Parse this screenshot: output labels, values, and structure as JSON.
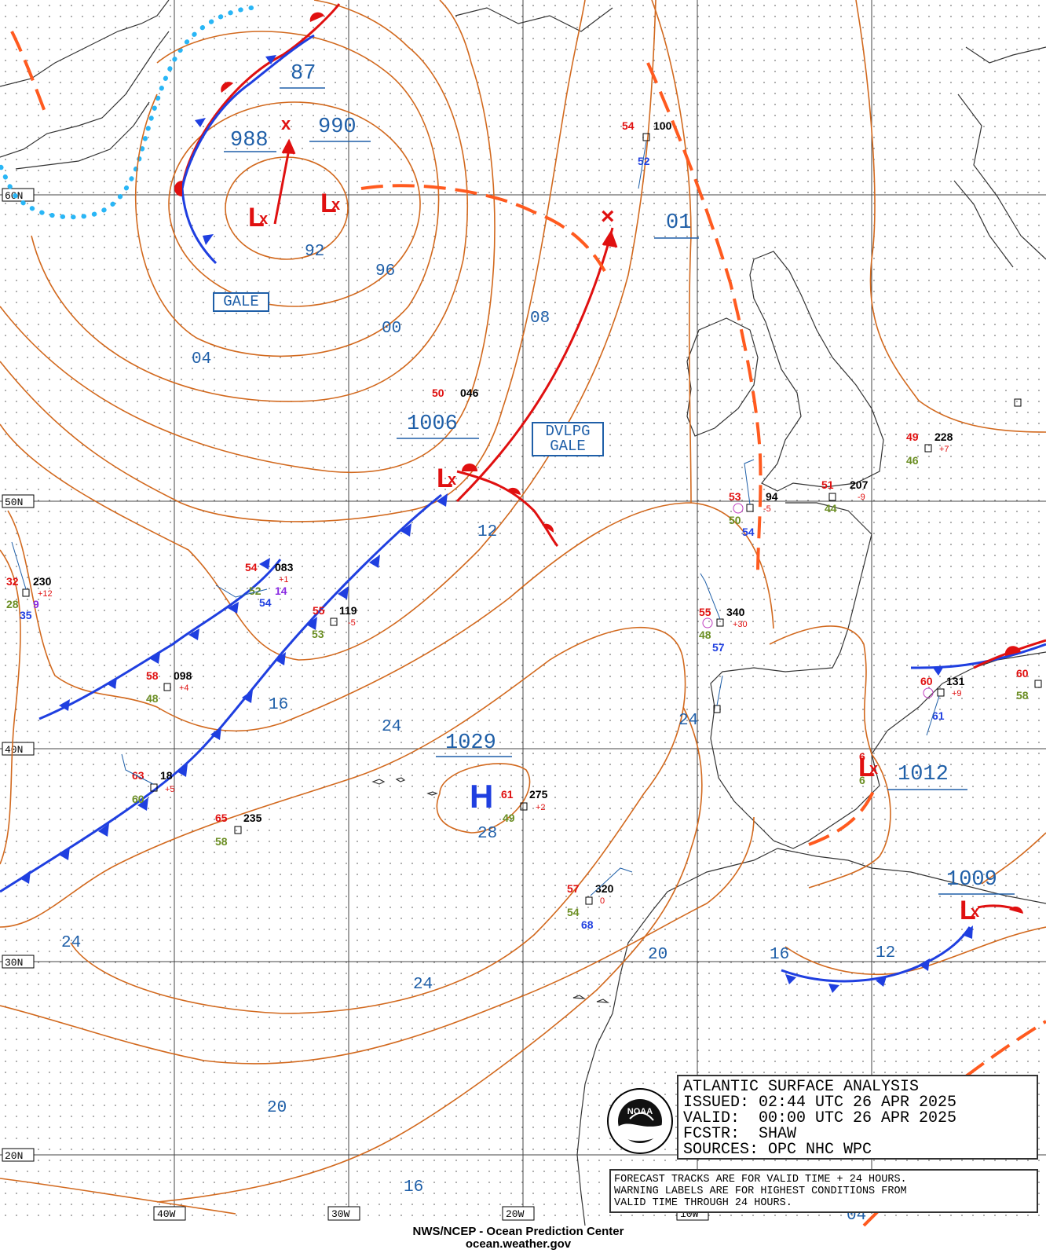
{
  "title_box": {
    "line1": "ATLANTIC SURFACE ANALYSIS",
    "line2": "ISSUED: 02:44 UTC 26 APR 2025",
    "line3": "VALID:  00:00 UTC 26 APR 2025",
    "line4": "FCSTR:  SHAW",
    "line5": "SOURCES: OPC NHC WPC"
  },
  "note_box": {
    "line1": "FORECAST TRACKS ARE FOR VALID TIME + 24 HOURS.",
    "line2": "WARNING LABELS ARE FOR HIGHEST CONDITIONS FROM",
    "line3": "VALID TIME THROUGH 24 HOURS."
  },
  "credit": {
    "line1": "NWS/NCEP - Ocean Prediction Center",
    "line2": "ocean.weather.gov"
  },
  "logo_text": "NOAA",
  "grid": {
    "lat_labels": [
      "60N",
      "50N",
      "40N",
      "30N",
      "20N"
    ],
    "lon_labels": [
      "40W",
      "30W",
      "20W",
      "10W"
    ]
  },
  "warnings": {
    "gale": "GALE",
    "dvlpg_gale_1": "DVLPG",
    "dvlpg_gale_2": "GALE"
  },
  "pressure_centers": {
    "low_988": "988",
    "low_990": "990",
    "low_87": "87",
    "low_1006": "1006",
    "low_01": "01",
    "high_1029": "1029",
    "high_letter": "H",
    "low_1012": "1012",
    "low_1009": "1009"
  },
  "isobar_labels": {
    "i92": "92",
    "i96": "96",
    "i00": "00",
    "i04": "04",
    "i08": "08",
    "i12": "12",
    "i16a": "16",
    "i24a": "24",
    "i28": "28",
    "i24b": "24",
    "i24c": "24",
    "i24d": "24",
    "i20a": "20",
    "i20b": "20",
    "i16b": "16",
    "i12b": "12",
    "i16c": "16",
    "i04b": "04"
  },
  "stations": [
    {
      "temp": "54",
      "pres": "100",
      "dew": "52"
    },
    {
      "temp": "50",
      "pres": "046"
    },
    {
      "temp": "32",
      "pres": "230",
      "tend": "+12",
      "dew": "28",
      "vis": "9",
      "sst": "35"
    },
    {
      "temp": "54",
      "pres": "083",
      "tend": "+1",
      "dew": "52",
      "vis": "14",
      "sst": "54"
    },
    {
      "temp": "55",
      "pres": "119",
      "tend": "-5",
      "dew": "53"
    },
    {
      "temp": "58",
      "pres": "098",
      "tend": "+4",
      "dew": "48"
    },
    {
      "temp": "63",
      "pres": "18",
      "tend": "+5",
      "dew": "60"
    },
    {
      "temp": "65",
      "pres": "235",
      "dew": "58"
    },
    {
      "temp": "61",
      "pres": "275",
      "tend": "+2",
      "dew": "49"
    },
    {
      "temp": "57",
      "pres": "320",
      "tend": "0",
      "dew": "54",
      "sst": "68"
    },
    {
      "temp": "53",
      "pres": "94",
      "tend": "-5",
      "dew": "50",
      "sst": "54"
    },
    {
      "temp": "51",
      "pres": "207",
      "tend": "-9",
      "dew": "44"
    },
    {
      "temp": "49",
      "pres": "228",
      "tend": "+7",
      "dew": "46"
    },
    {
      "temp": "55",
      "pres": "340",
      "tend": "+30",
      "dew": "48",
      "sst": "57"
    },
    {
      "temp": "60",
      "pres": "131",
      "tend": "+9",
      "sst": "61"
    },
    {
      "temp": "60",
      "dew": "58"
    },
    {
      "temp": "6",
      "dew": "6"
    }
  ],
  "colors": {
    "isobar": "#d2691e",
    "label_blue": "#1f5fa8",
    "cold_front": "#1f3fe0",
    "warm_front": "#e01010",
    "trough": "#ff5a1f",
    "ice_edge": "#29b6f6",
    "low_symbol": "#e01010",
    "high_symbol": "#1f3fe0"
  }
}
